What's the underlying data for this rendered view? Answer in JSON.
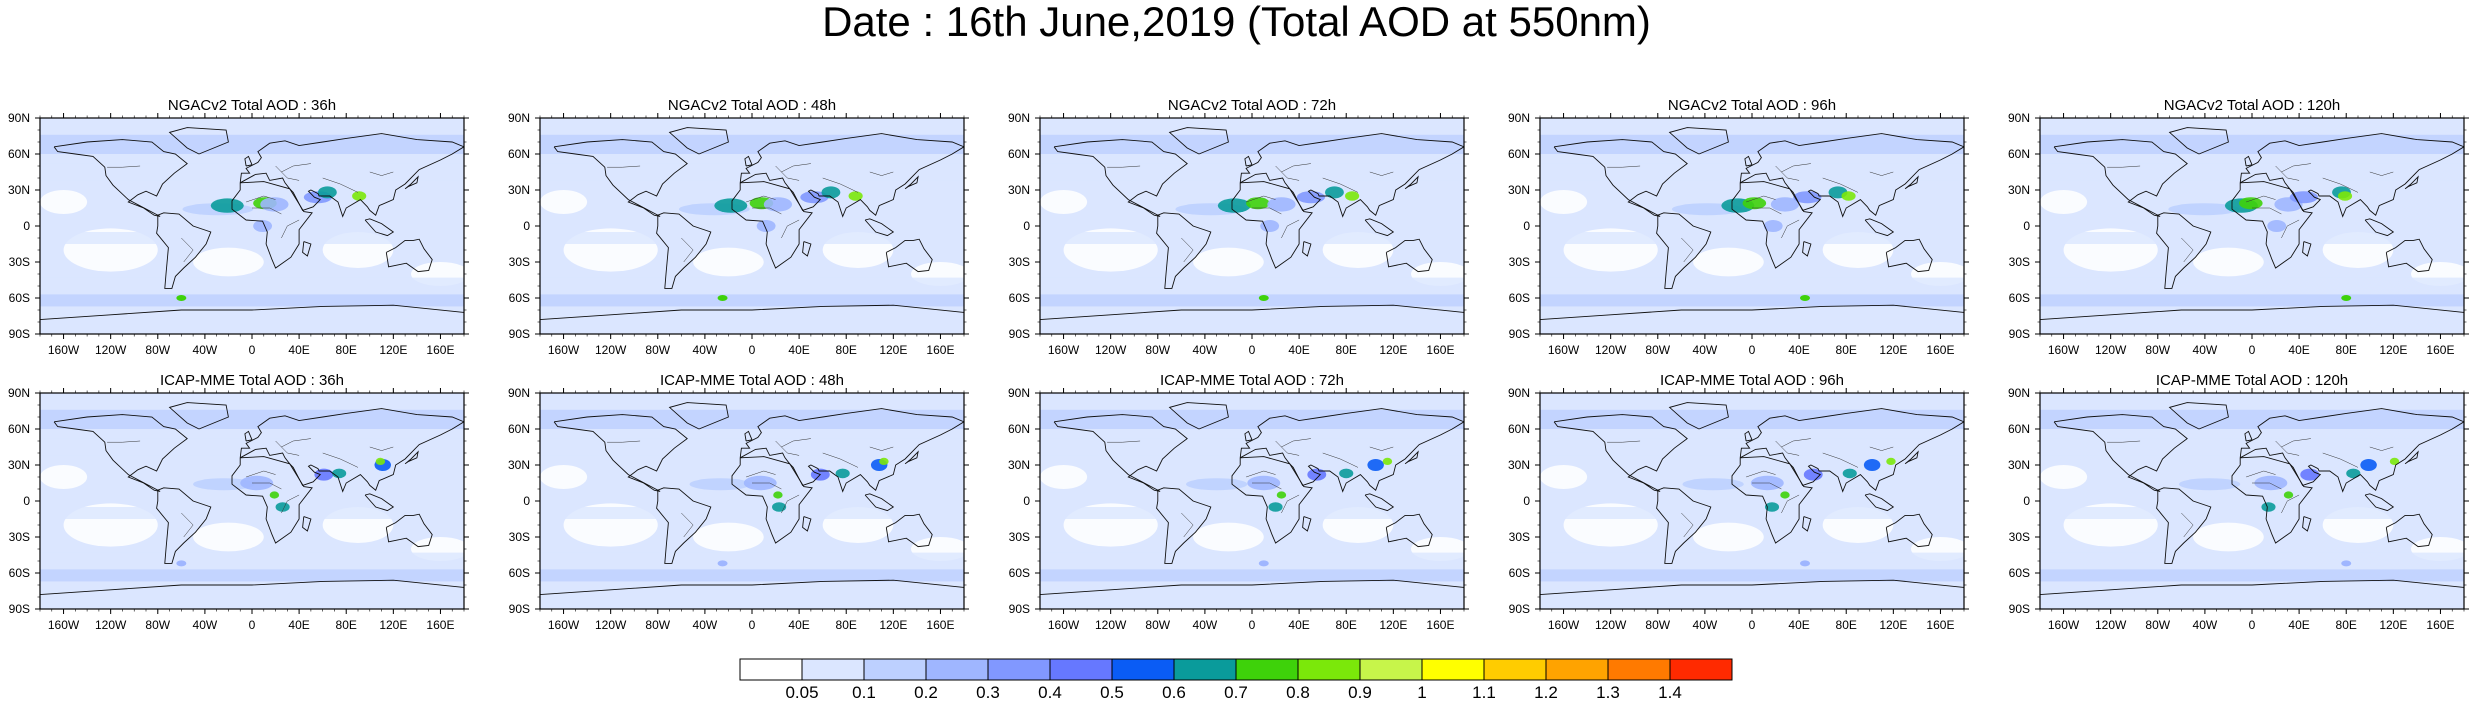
{
  "figure_title": "Date : 16th June,2019 (Total AOD at 550nm)",
  "lat_ticks": [
    "90N",
    "60N",
    "30N",
    "0",
    "30S",
    "60S",
    "90S"
  ],
  "lon_ticks": [
    "160W",
    "120W",
    "80W",
    "40W",
    "0",
    "40E",
    "80E",
    "120E",
    "160E"
  ],
  "lon_tick_values": [
    -160,
    -120,
    -80,
    -40,
    0,
    40,
    80,
    120,
    160
  ],
  "lat_tick_values": [
    90,
    60,
    30,
    0,
    -30,
    -60,
    -90
  ],
  "rows": [
    {
      "model": "NGACv2",
      "panels": [
        {
          "title": "NGACv2 Total AOD : 36h"
        },
        {
          "title": "NGACv2 Total AOD : 48h"
        },
        {
          "title": "NGACv2 Total AOD : 72h"
        },
        {
          "title": "NGACv2 Total AOD : 96h"
        },
        {
          "title": "NGACv2 Total AOD : 120h"
        }
      ]
    },
    {
      "model": "ICAP-MME",
      "panels": [
        {
          "title": "ICAP-MME Total AOD : 36h"
        },
        {
          "title": "ICAP-MME Total AOD : 48h"
        },
        {
          "title": "ICAP-MME Total AOD : 72h"
        },
        {
          "title": "ICAP-MME Total AOD : 96h"
        },
        {
          "title": "ICAP-MME Total AOD : 120h"
        }
      ]
    }
  ],
  "colorbar": {
    "labels": [
      "0.05",
      "0.1",
      "0.2",
      "0.3",
      "0.4",
      "0.5",
      "0.6",
      "0.7",
      "0.8",
      "0.9",
      "1",
      "1.1",
      "1.2",
      "1.3",
      "1.4"
    ],
    "colors": [
      "#ffffff",
      "#dbe6ff",
      "#bdd0ff",
      "#9fb6ff",
      "#8198ff",
      "#6678ff",
      "#0a5cf5",
      "#0a9b9b",
      "#3ed20a",
      "#7be80a",
      "#c7f54a",
      "#ffff00",
      "#ffcc00",
      "#ffa300",
      "#ff7a00",
      "#ff2a00"
    ]
  }
}
